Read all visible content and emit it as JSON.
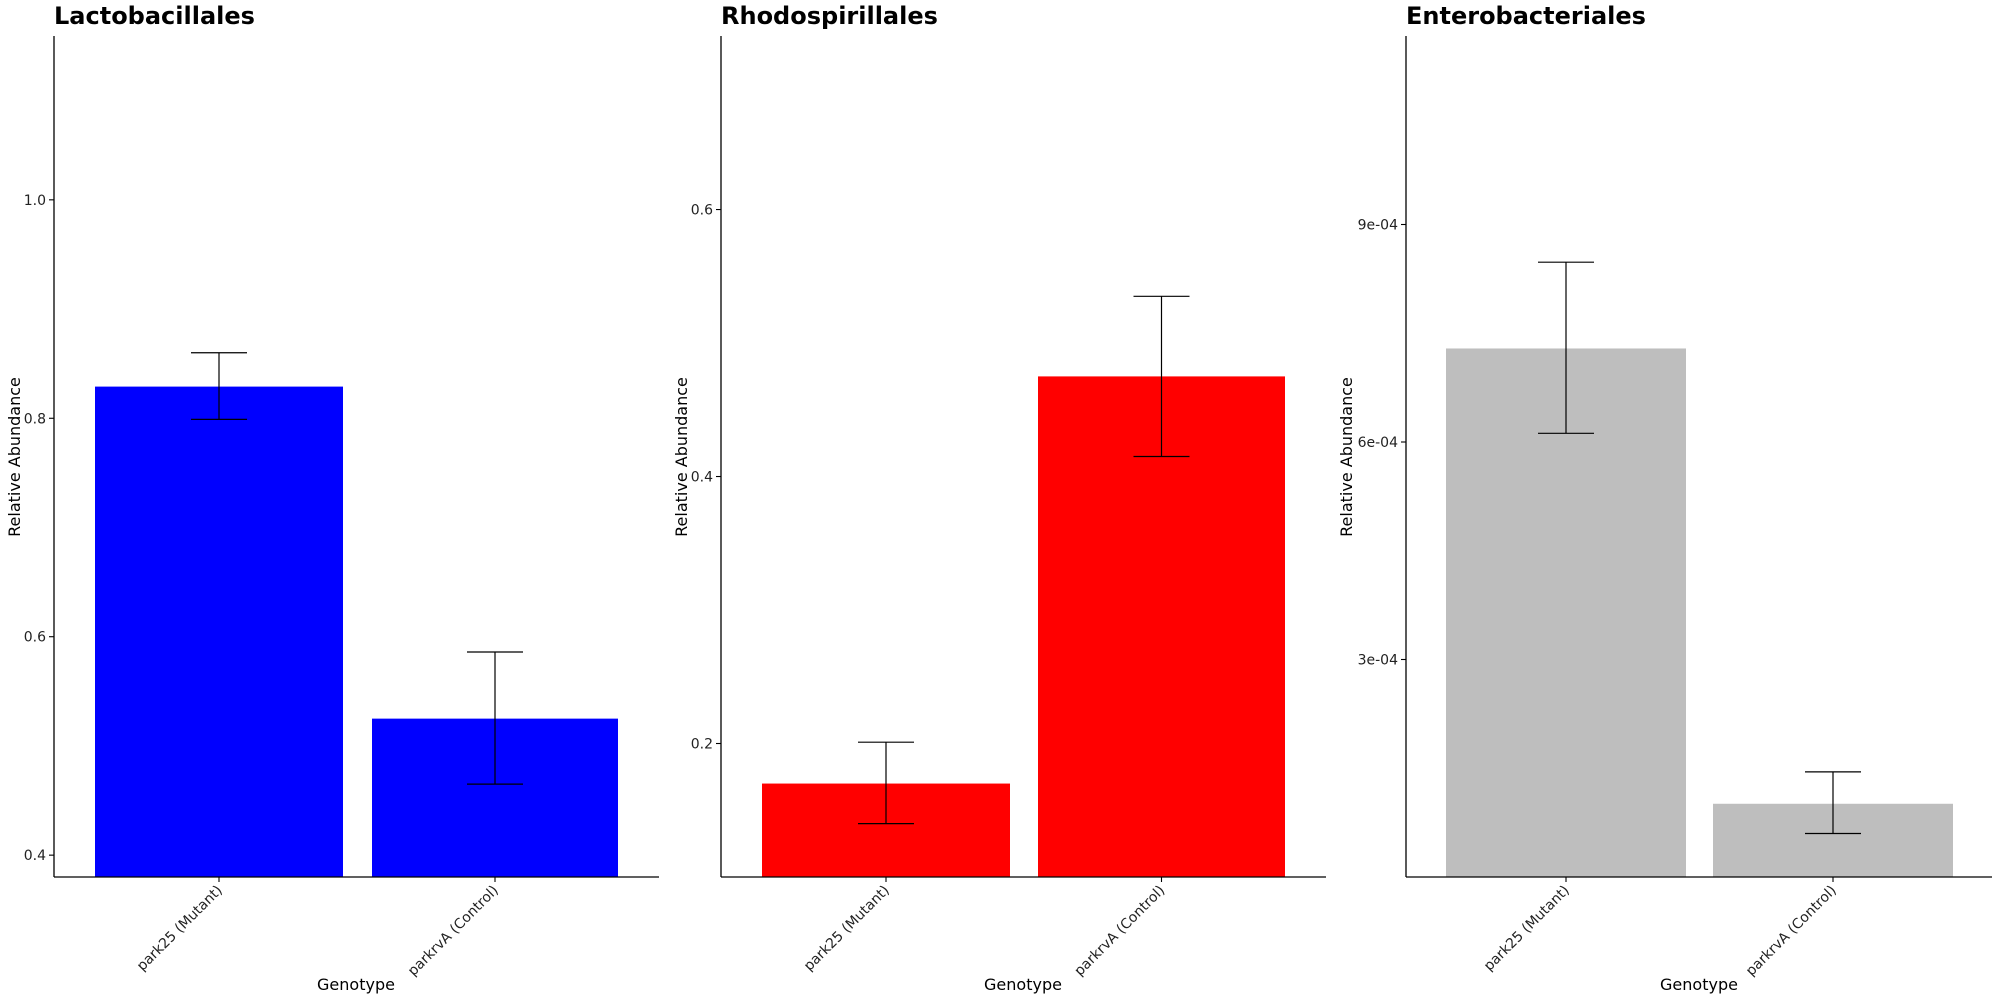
{
  "chart_data": [
    {
      "type": "bar",
      "title": "Lactobacillales",
      "xlabel": "Genotype",
      "ylabel": "Relative Abundance",
      "categories": [
        "park25 (Mutant)",
        "parkrvA (Control)"
      ],
      "values": [
        0.829,
        0.525
      ],
      "error_low": [
        0.799,
        0.465
      ],
      "error_high": [
        0.86,
        0.586
      ],
      "colors": [
        "#0000FF",
        "#0000FF"
      ],
      "ylim": [
        0.38,
        1.15
      ],
      "y_ticks": [
        0.4,
        0.6,
        0.8,
        1.0
      ],
      "y_tick_labels": [
        "0.4",
        "0.6",
        "0.8",
        "1.0"
      ],
      "grid": false
    },
    {
      "type": "bar",
      "title": "Rhodospirillales",
      "xlabel": "Genotype",
      "ylabel": "Relative Abundance",
      "categories": [
        "park25 (Mutant)",
        "parkrvA (Control)"
      ],
      "values": [
        0.17,
        0.475
      ],
      "error_low": [
        0.14,
        0.415
      ],
      "error_high": [
        0.201,
        0.535
      ],
      "colors": [
        "#FF0000",
        "#FF0000"
      ],
      "ylim": [
        0.1,
        0.73
      ],
      "y_ticks": [
        0.2,
        0.4,
        0.6
      ],
      "y_tick_labels": [
        "0.2",
        "0.4",
        "0.6"
      ],
      "grid": false
    },
    {
      "type": "bar",
      "title": "Enterobacteriales",
      "xlabel": "Genotype",
      "ylabel": "Relative Abundance",
      "categories": [
        "park25 (Mutant)",
        "parkrvA (Control)"
      ],
      "values": [
        0.000729,
        0.000101
      ],
      "error_low": [
        0.000612,
        6e-05
      ],
      "error_high": [
        0.000848,
        0.000145
      ],
      "colors": [
        "#BEBEBE",
        "#BEBEBE"
      ],
      "ylim": [
        0,
        0.00116
      ],
      "y_ticks": [
        0.0003,
        0.0006,
        0.0009
      ],
      "y_tick_labels": [
        "3e-04",
        "6e-04",
        "9e-04"
      ],
      "grid": false
    }
  ]
}
